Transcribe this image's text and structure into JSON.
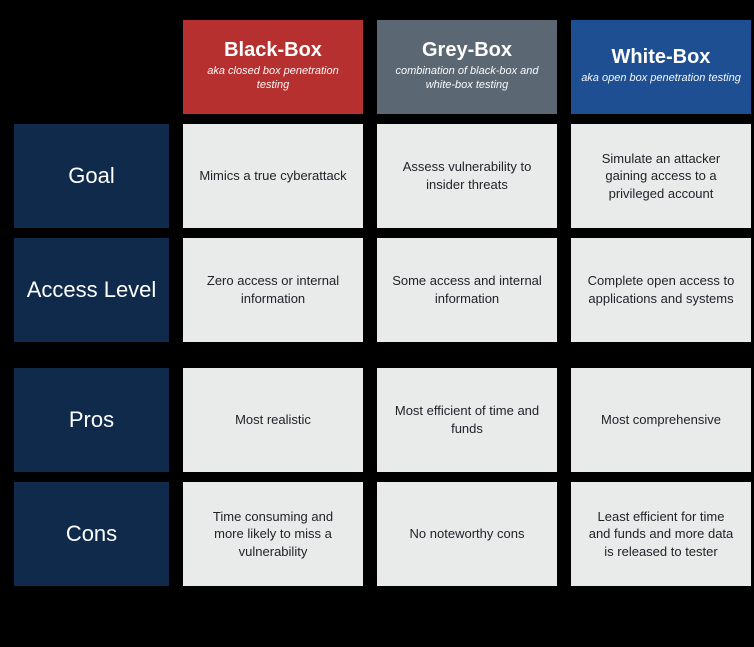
{
  "colors": {
    "page_bg": "#000000",
    "row_header_bg": "#0f2a4a",
    "row_header_text": "#ffffff",
    "cell_bg": "#e9ebeb",
    "cell_text": "#202428"
  },
  "columns": [
    {
      "title": "Black-Box",
      "subtitle": "aka closed box penetration testing",
      "bg": "#b73030"
    },
    {
      "title": "Grey-Box",
      "subtitle": "combination of black-box and white-box testing",
      "bg": "#5b6874"
    },
    {
      "title": "White-Box",
      "subtitle": "aka open box penetration testing",
      "bg": "#1f4f93"
    }
  ],
  "rows": [
    {
      "label": "Goal",
      "cells": [
        "Mimics a true cyberattack",
        "Assess vulnerability to insider threats",
        "Simulate an attacker gaining access to a privileged account"
      ]
    },
    {
      "label": "Access Level",
      "cells": [
        "Zero access or internal information",
        "Some access and internal information",
        "Complete open access to applications and systems"
      ]
    },
    {
      "label": "Pros",
      "cells": [
        "Most realistic",
        "Most efficient of time and funds",
        "Most comprehensive"
      ]
    },
    {
      "label": "Cons",
      "cells": [
        "Time consuming and more likely to miss a vulnerability",
        "No noteworthy cons",
        "Least efficient for time and funds and more data is released to tester"
      ]
    }
  ],
  "group_break_after_row_index": 1
}
